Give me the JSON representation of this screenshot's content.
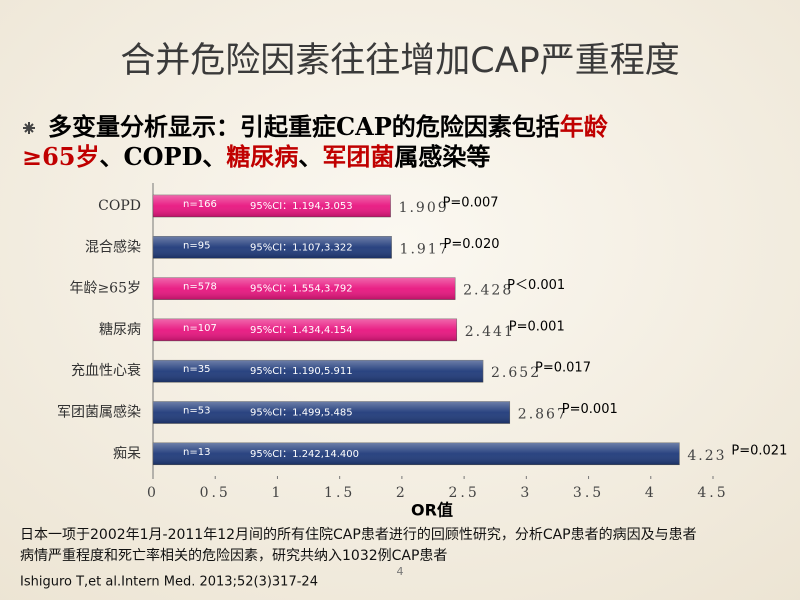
{
  "title": "合并危险因素往往增加CAP严重程度",
  "bullet": {
    "lines": [
      [
        {
          "text": "多变量分析显示：引起重症CAP的危险因素包括",
          "color": "#000000"
        },
        {
          "text": "年龄",
          "color": "#c00000"
        }
      ],
      [
        {
          "text": "≥65岁",
          "color": "#c00000"
        },
        {
          "text": "、COPD、",
          "color": "#000000"
        },
        {
          "text": "糖尿病",
          "color": "#c00000"
        },
        {
          "text": "、",
          "color": "#000000"
        },
        {
          "text": "军团菌",
          "color": "#c00000"
        },
        {
          "text": "属感染等",
          "color": "#000000"
        }
      ]
    ]
  },
  "chart_data": {
    "type": "bar",
    "orientation": "horizontal",
    "categories": [
      "COPD",
      "混合感染",
      "年龄≥65岁",
      "糖尿病",
      "充血性心衰",
      "军团菌属感染",
      "痴呆"
    ],
    "values": [
      1.909,
      1.917,
      2.428,
      2.441,
      2.652,
      2.867,
      4.23
    ],
    "colors": [
      "#e8157f",
      "#1f3a7a",
      "#e8157f",
      "#e8157f",
      "#1f3a7a",
      "#1f3a7a",
      "#1f3a7a"
    ],
    "n_labels": [
      "n=166",
      "n=95",
      "n=578",
      "n=107",
      "n=35",
      "n=53",
      "n=13"
    ],
    "ci_labels": [
      "95%CI：1.194,3.053",
      "95%CI：1.107,3.322",
      "95%CI：1.554,3.792",
      "95%CI：1.434,4.154",
      "95%CI：1.190,5.911",
      "95%CI：1.499,5.485",
      "95%CI：1.242,14.400"
    ],
    "p_labels": [
      "P=0.007",
      "P=0.020",
      "P＜0.001",
      "P=0.001",
      "P=0.017",
      "P=0.001",
      "P=0.021"
    ],
    "xlim": [
      0,
      4.5
    ],
    "xticks": [
      0,
      0.5,
      1,
      1.5,
      2,
      2.5,
      3,
      3.5,
      4,
      4.5
    ],
    "xlabel": "OR值"
  },
  "footnote": [
    "日本一项于2002年1月-2011年12月间的所有住院CAP患者进行的回顾性研究，分析CAP患者的病因及与患者",
    "病情严重程度和死亡率相关的危险因素，研究共纳入1032例CAP患者"
  ],
  "citation": "Ishiguro T,et al.Intern Med. 2013;52(3)317-24",
  "page_number": "4"
}
